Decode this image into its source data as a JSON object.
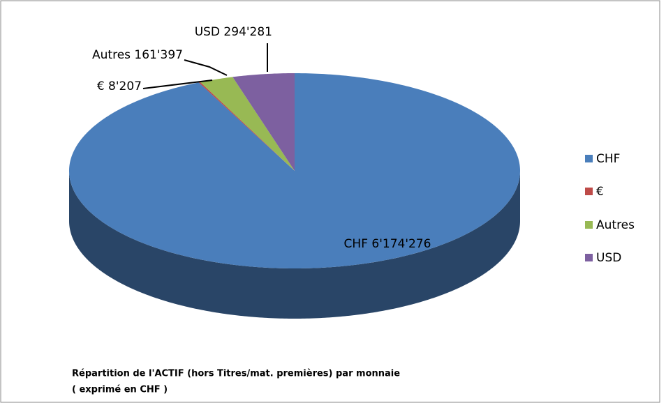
{
  "chart_data": {
    "type": "pie",
    "title": "Répartition de l'ACTIF (hors Titres/mat. premières)  par monnaie",
    "subtitle": "( exprimé en CHF )",
    "categories": [
      "CHF",
      "€",
      "Autres",
      "USD"
    ],
    "values": [
      6174276,
      8207,
      161397,
      294281
    ],
    "value_labels": [
      "CHF 6'174'276",
      "€ 8'207",
      "Autres 161'397",
      "USD 294'281"
    ],
    "colors": [
      "#4a7ebb",
      "#be4b48",
      "#98b954",
      "#7d60a0"
    ],
    "legend": "right"
  }
}
